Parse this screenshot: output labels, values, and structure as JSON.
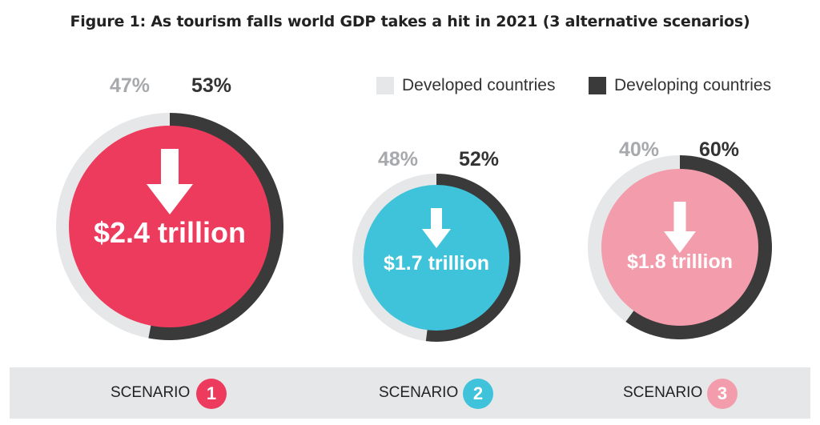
{
  "title": "Figure 1: As tourism falls world GDP takes a hit in 2021 (3 alternative scenarios)",
  "legend": [
    {
      "label": "Developed countries",
      "color": "#e6e7e8"
    },
    {
      "label": "Developing countries",
      "color": "#3a3a3a"
    }
  ],
  "chart_data": {
    "type": "pie",
    "title": "Figure 1: As tourism falls world GDP takes a hit in 2021 (3 alternative scenarios)",
    "series_names": [
      "Developed countries",
      "Developing countries"
    ],
    "scenarios": [
      {
        "scenario": "SCENARIO",
        "number": "1",
        "value_label": "$2.4 trillion",
        "gdp_loss_trillion": 2.4,
        "developed_pct": 47,
        "developing_pct": 53,
        "developed_label": "47%",
        "developing_label": "53%",
        "color": "#ed3b5d"
      },
      {
        "scenario": "SCENARIO",
        "number": "2",
        "value_label": "$1.7 trillion",
        "gdp_loss_trillion": 1.7,
        "developed_pct": 48,
        "developing_pct": 52,
        "developed_label": "48%",
        "developing_label": "52%",
        "color": "#3ec3da"
      },
      {
        "scenario": "SCENARIO",
        "number": "3",
        "value_label": "$1.8 trillion",
        "gdp_loss_trillion": 1.8,
        "developed_pct": 40,
        "developing_pct": 60,
        "developed_label": "40%",
        "developing_label": "60%",
        "color": "#f39cab"
      }
    ]
  },
  "colors": {
    "developed": "#e6e7e8",
    "developing": "#3a3a3a",
    "arrow": "#ffffff",
    "text_light": "#a7a9ac",
    "text_dark": "#333333"
  },
  "icons": {
    "arrow": "down-arrow-icon"
  }
}
